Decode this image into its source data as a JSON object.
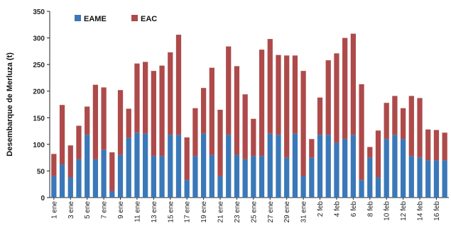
{
  "chart_data": {
    "type": "bar",
    "stacked": true,
    "ylabel": "Desembarque de Merluza (t)",
    "xlabel": "",
    "ylim": [
      0,
      350
    ],
    "yticks": [
      0,
      50,
      100,
      150,
      200,
      250,
      300,
      350
    ],
    "grid": false,
    "legend_position": "top-left",
    "categories": [
      "1 ene",
      "2 ene",
      "3 ene",
      "4 ene",
      "5 ene",
      "6 ene",
      "7 ene",
      "8 ene",
      "9 ene",
      "10 ene",
      "11 ene",
      "12 ene",
      "13 ene",
      "14 ene",
      "15 ene",
      "16 ene",
      "17 ene",
      "18 ene",
      "19 ene",
      "20 ene",
      "21 ene",
      "22 ene",
      "23 ene",
      "24 ene",
      "25 ene",
      "26 ene",
      "27 ene",
      "28 ene",
      "29 ene",
      "30 ene",
      "31 ene",
      "1 feb",
      "2 feb",
      "3 feb",
      "4 feb",
      "5 feb",
      "6 feb",
      "7 feb",
      "8 feb",
      "9 feb",
      "10 feb",
      "11 feb",
      "12 feb",
      "13 feb",
      "14 feb",
      "15 feb",
      "16 feb",
      "17 feb"
    ],
    "tick_labels": [
      "1 ene",
      "3 ene",
      "5 ene",
      "7 ene",
      "9 ene",
      "11 ene",
      "13 ene",
      "15 ene",
      "17 ene",
      "19 ene",
      "21 ene",
      "23 ene",
      "25 ene",
      "27 ene",
      "29 ene",
      "31 ene",
      "2 feb",
      "4 feb",
      "6 feb",
      "8 feb",
      "10 feb",
      "12 feb",
      "14 feb",
      "16 feb"
    ],
    "series": [
      {
        "name": "EAME",
        "color": "#3a78b8",
        "values": [
          40,
          62,
          38,
          72,
          118,
          72,
          90,
          12,
          80,
          112,
          122,
          120,
          78,
          78,
          118,
          118,
          33,
          78,
          120,
          80,
          40,
          118,
          80,
          72,
          78,
          78,
          120,
          118,
          75,
          120,
          40,
          75,
          118,
          118,
          103,
          110,
          118,
          33,
          75,
          38,
          110,
          118,
          110,
          78,
          75,
          70,
          70,
          70
        ]
      },
      {
        "name": "EAC",
        "color": "#ae4a4a",
        "values": [
          42,
          112,
          60,
          63,
          53,
          140,
          117,
          73,
          122,
          55,
          130,
          135,
          160,
          170,
          155,
          188,
          80,
          90,
          86,
          164,
          125,
          166,
          167,
          122,
          70,
          200,
          178,
          150,
          192,
          147,
          198,
          35,
          70,
          140,
          168,
          190,
          190,
          180,
          20,
          88,
          68,
          73,
          58,
          113,
          112,
          58,
          57,
          52
        ]
      }
    ]
  }
}
